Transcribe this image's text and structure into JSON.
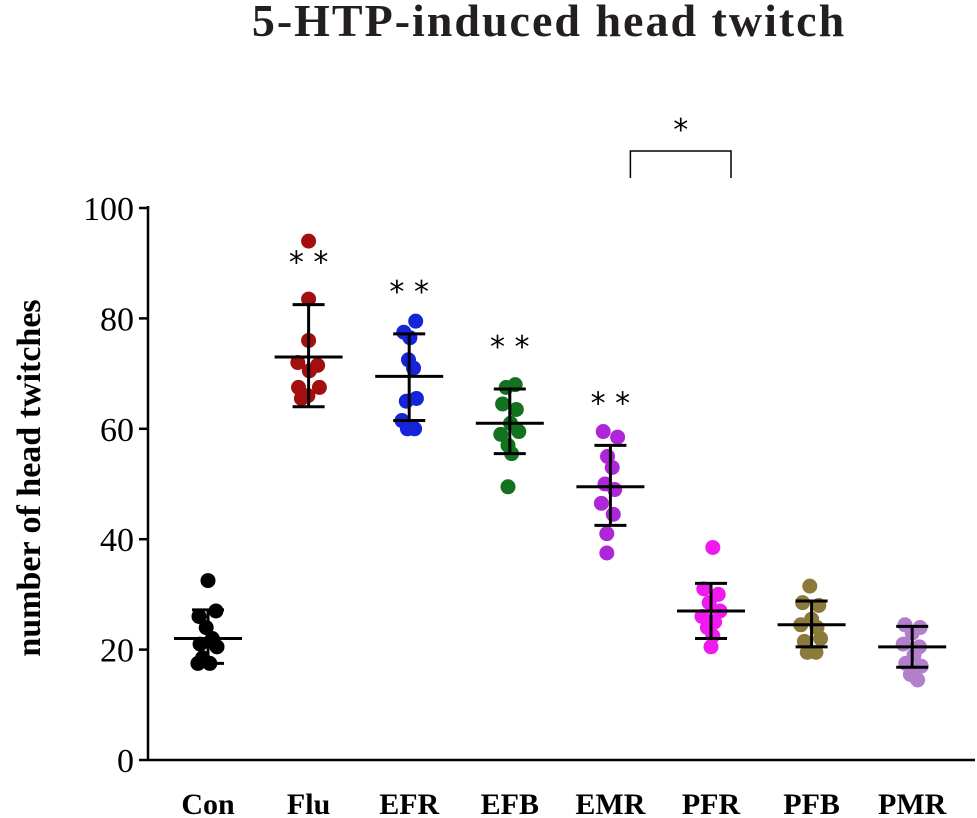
{
  "chart_data": {
    "type": "scatter",
    "title": "5-HTP-induced head twitch",
    "xlabel": "",
    "ylabel": "number of head twitches",
    "ylim": [
      0,
      100
    ],
    "yticks": [
      0,
      20,
      40,
      60,
      80,
      100
    ],
    "categories": [
      "Con",
      "Flu",
      "EFR",
      "EFB",
      "EMR",
      "PFR",
      "PFB",
      "PMR"
    ],
    "colors": [
      "#000000",
      "#a30f0f",
      "#1424d6",
      "#12721e",
      "#ad27d9",
      "#f01af0",
      "#8c7a3a",
      "#b27fcd"
    ],
    "series": [
      {
        "category": "Con",
        "points": [
          [
            0,
            32.5
          ],
          [
            -0.25,
            26
          ],
          [
            0.22,
            27
          ],
          [
            -0.05,
            24
          ],
          [
            0.12,
            22
          ],
          [
            -0.22,
            21
          ],
          [
            0.25,
            20.5
          ],
          [
            -0.15,
            18.5
          ],
          [
            0.05,
            17.5
          ],
          [
            -0.28,
            17.5
          ]
        ],
        "mean": 22,
        "sd_low": 17.5,
        "sd_high": 27.2,
        "significance": ""
      },
      {
        "category": "Flu",
        "points": [
          [
            0,
            94
          ],
          [
            0,
            83.5
          ],
          [
            0,
            76
          ],
          [
            -0.3,
            72
          ],
          [
            0.25,
            71.5
          ],
          [
            0.02,
            70.5
          ],
          [
            -0.28,
            67.5
          ],
          [
            0.3,
            67.5
          ],
          [
            -0.02,
            66
          ],
          [
            -0.2,
            65.5
          ]
        ],
        "mean": 73,
        "sd_low": 64,
        "sd_high": 82.5,
        "significance": "* *"
      },
      {
        "category": "EFR",
        "points": [
          [
            0.18,
            79.5
          ],
          [
            -0.15,
            77.5
          ],
          [
            0.02,
            76.5
          ],
          [
            -0.02,
            72.5
          ],
          [
            0.12,
            71
          ],
          [
            -0.08,
            65
          ],
          [
            0.2,
            65.5
          ],
          [
            -0.2,
            61.5
          ],
          [
            -0.05,
            60
          ],
          [
            0.15,
            60
          ]
        ],
        "mean": 69.5,
        "sd_low": 61.5,
        "sd_high": 77.2,
        "significance": "* *"
      },
      {
        "category": "EFB",
        "points": [
          [
            -0.1,
            67.5
          ],
          [
            0.15,
            68
          ],
          [
            -0.2,
            64.5
          ],
          [
            0.18,
            63.5
          ],
          [
            0.02,
            61
          ],
          [
            -0.25,
            59
          ],
          [
            0.25,
            59.5
          ],
          [
            -0.05,
            57
          ],
          [
            0.05,
            55.5
          ],
          [
            -0.05,
            49.5
          ]
        ],
        "mean": 61,
        "sd_low": 55.5,
        "sd_high": 67.2,
        "significance": "* *"
      },
      {
        "category": "EMR",
        "points": [
          [
            -0.2,
            59.5
          ],
          [
            0.2,
            58.5
          ],
          [
            -0.08,
            55
          ],
          [
            0.05,
            53
          ],
          [
            -0.15,
            50
          ],
          [
            0.12,
            49
          ],
          [
            -0.25,
            46.5
          ],
          [
            0.08,
            44.5
          ],
          [
            -0.1,
            41
          ],
          [
            -0.1,
            37.5
          ]
        ],
        "mean": 49.5,
        "sd_low": 42.5,
        "sd_high": 57,
        "significance": "* *"
      },
      {
        "category": "PFR",
        "points": [
          [
            0.05,
            38.5
          ],
          [
            -0.2,
            31
          ],
          [
            0.2,
            30
          ],
          [
            -0.05,
            28.5
          ],
          [
            0.25,
            27
          ],
          [
            -0.25,
            26
          ],
          [
            0.1,
            25
          ],
          [
            -0.1,
            24
          ],
          [
            0.05,
            22.5
          ],
          [
            0,
            20.5
          ]
        ],
        "mean": 27,
        "sd_low": 22,
        "sd_high": 32,
        "significance": ""
      },
      {
        "category": "PFB",
        "points": [
          [
            -0.05,
            31.5
          ],
          [
            -0.25,
            28.5
          ],
          [
            0.2,
            28
          ],
          [
            0,
            25.5
          ],
          [
            -0.3,
            24.5
          ],
          [
            0.15,
            24
          ],
          [
            -0.2,
            21.5
          ],
          [
            0.25,
            22
          ],
          [
            -0.12,
            19.5
          ],
          [
            0.12,
            19.5
          ]
        ],
        "mean": 24.5,
        "sd_low": 20.5,
        "sd_high": 28.8,
        "significance": ""
      },
      {
        "category": "PMR",
        "points": [
          [
            -0.2,
            24.5
          ],
          [
            0.22,
            24
          ],
          [
            0,
            23
          ],
          [
            -0.25,
            21
          ],
          [
            0.2,
            20.5
          ],
          [
            0.05,
            19
          ],
          [
            -0.18,
            17.5
          ],
          [
            0.25,
            17
          ],
          [
            -0.05,
            15.5
          ],
          [
            0.15,
            14.5
          ]
        ],
        "mean": 20.5,
        "sd_low": 16.8,
        "sd_high": 24.2,
        "significance": ""
      }
    ],
    "comparison": {
      "from": "EMR",
      "to": "PFR",
      "label": "*"
    },
    "grid": false,
    "legend": "none"
  }
}
